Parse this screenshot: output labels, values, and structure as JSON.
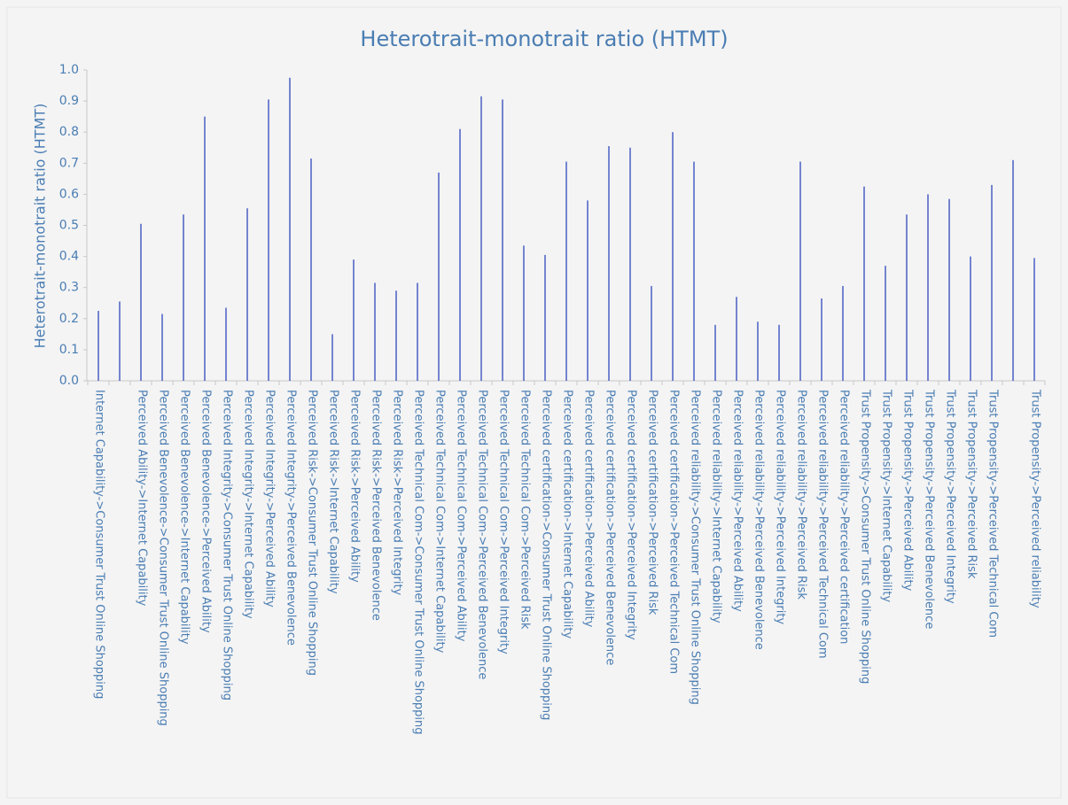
{
  "chart_data": {
    "type": "bar",
    "title": "Heterotrait-monotrait ratio (HTMT)",
    "y_label": "Heterotrait-monotrait ratio (HTMT)",
    "color": "#4a5ec4",
    "categories": [
      "Internet Capability->Consumer Trust Online Shopping",
      null,
      "Perceived Ability->Internet Capability",
      "Perceived Benevolence->Consumer Trust Online Shopping",
      "Perceived Benevolence->Internet Capability",
      "Perceived Benevolence->Perceived Ability",
      "Perceived Integrity->Consumer Trust Online Shopping",
      "Perceived Integrity->Internet Capability",
      "Perceived Integrity->Perceived Ability",
      "Perceived Integrity->Perceived Benevolence",
      "Perceived Risk->Consumer Trust Online Shopping",
      "Perceived Risk->Internet Capability",
      "Perceived Risk->Perceived Ability",
      "Perceived Risk->Perceived Benevolence",
      "Perceived Risk->Perceived Integrity",
      "Perceived Technical Com->Consumer Trust Online Shopping",
      "Perceived Technical Com->Internet Capability",
      "Perceived Technical Com->Perceived Ability",
      "Perceived Technical Com->Perceived Benevolence",
      "Perceived Technical Com->Perceived Integrity",
      "Perceived Technical Com->Perceived Risk",
      "Perceived certification->Consumer Trust Online Shopping",
      "Perceived certification->Internet Capability",
      "Perceived certification->Perceived Ability",
      "Perceived certification->Perceived Benevolence",
      "Perceived certification->Perceived Integrity",
      "Perceived certification->Perceived Risk",
      "Perceived certification->Perceived Technical Com",
      "Perceived reliability->Consumer Trust Online Shopping",
      "Perceived reliability->Internet Capability",
      "Perceived reliability->Perceived Ability",
      "Perceived reliability->Perceived Benevolence",
      "Perceived reliability->Perceived Integrity",
      "Perceived reliability->Perceived Risk",
      "Perceived reliability->Perceived Technical Com",
      "Perceived reliability->Perceived certification",
      "Trust Propensity->Consumer Trust Online Shopping",
      "Trust Propensity->Internet Capability",
      "Trust Propensity->Perceived Ability",
      "Trust Propensity->Perceived Benevolence",
      "Trust Propensity->Perceived Integrity",
      "Trust Propensity->Perceived Risk",
      "Trust Propensity->Perceived Technical Com",
      null,
      "Trust Propensity->Perceived reliability"
    ],
    "values": [
      0.225,
      0.255,
      0.505,
      0.215,
      0.535,
      0.85,
      0.235,
      0.555,
      0.905,
      0.975,
      0.715,
      0.15,
      0.39,
      0.315,
      0.29,
      0.315,
      0.67,
      0.81,
      0.915,
      0.905,
      0.435,
      0.405,
      0.705,
      0.58,
      0.755,
      0.75,
      0.305,
      0.8,
      0.705,
      0.18,
      0.27,
      0.19,
      0.18,
      0.705,
      0.265,
      0.305,
      0.625,
      0.37,
      0.535,
      0.6,
      0.585,
      0.4,
      0.63,
      0.71,
      0.395
    ],
    "ylim": [
      0,
      1
    ],
    "yticks": [
      {
        "value": 0,
        "label": "0.0"
      },
      0.1,
      0.2,
      0.3,
      0.4,
      0.5,
      0.6,
      0.7,
      0.8,
      0.9,
      {
        "value": 1,
        "label": "1.0"
      }
    ]
  }
}
